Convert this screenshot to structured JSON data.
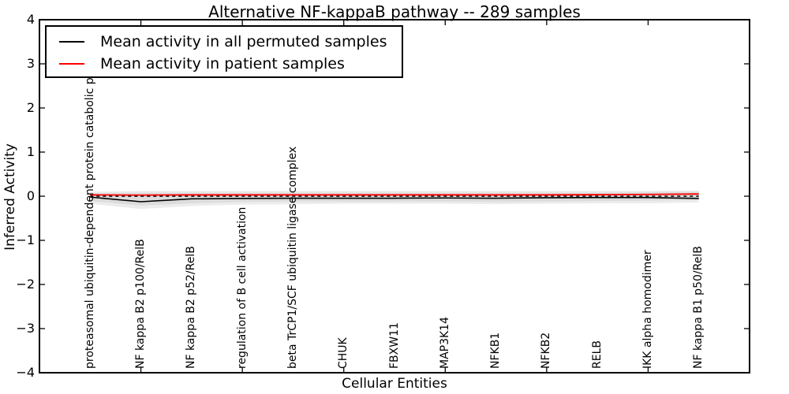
{
  "title": "Alternative NF-kappaB pathway -- 289 samples",
  "axes": {
    "ylabel": "Inferred Activity",
    "xlabel": "Cellular Entities",
    "ytick_labels": [
      "4",
      "3",
      "2",
      "1",
      "0",
      "−1",
      "−2",
      "−3",
      "−4"
    ]
  },
  "legend": {
    "items": [
      {
        "label": "Mean activity in all permuted samples",
        "color": "#000000"
      },
      {
        "label": "Mean activity in patient samples",
        "color": "#ff0000"
      }
    ]
  },
  "chart_data": {
    "type": "line",
    "title": "Alternative NF-kappaB pathway -- 289 samples",
    "xlabel": "Cellular Entities",
    "ylabel": "Inferred Activity",
    "ylim": [
      -4,
      4
    ],
    "yticks": [
      4,
      3,
      2,
      1,
      0,
      -1,
      -2,
      -3,
      -4
    ],
    "grid": false,
    "legend_position": "upper left",
    "categories": [
      "proteasomal ubiquitin-dependent protein catabolic process",
      "NF kappa B2 p100/RelB",
      "NF kappa B2 p52/RelB",
      "regulation of B cell activation",
      "beta TrCP1/SCF ubiquitin ligase complex",
      "CHUK",
      "FBXW11",
      "MAP3K14",
      "NFKB1",
      "NFKB2",
      "RELB",
      "IKK alpha homodimer",
      "NF kappa B1 p50/RelB"
    ],
    "series": [
      {
        "name": "Mean activity in all permuted samples",
        "color": "#000000",
        "values": [
          -0.02,
          -0.125,
          -0.06,
          -0.05,
          -0.045,
          -0.045,
          -0.045,
          -0.04,
          -0.045,
          -0.035,
          -0.03,
          -0.03,
          -0.05
        ]
      },
      {
        "name": "Mean activity in patient samples",
        "color": "#ff0000",
        "values": [
          0.03,
          0.025,
          0.03,
          0.03,
          0.03,
          0.03,
          0.03,
          0.03,
          0.03,
          0.03,
          0.035,
          0.04,
          0.05
        ]
      }
    ],
    "bands": [
      {
        "name": "outer-permutation-band",
        "color": "#ececec",
        "upper": [
          0.1,
          0.12,
          0.12,
          0.12,
          0.12,
          0.12,
          0.12,
          0.12,
          0.12,
          0.12,
          0.12,
          0.12,
          0.13
        ],
        "lower": [
          -0.17,
          -0.29,
          -0.22,
          -0.19,
          -0.18,
          -0.17,
          -0.17,
          -0.17,
          -0.18,
          -0.17,
          -0.16,
          -0.16,
          -0.14
        ]
      },
      {
        "name": "inner-permutation-band",
        "color": "#dcdcdc",
        "upper": [
          0.07,
          0.08,
          0.08,
          0.08,
          0.08,
          0.08,
          0.08,
          0.08,
          0.08,
          0.08,
          0.08,
          0.09,
          0.1
        ],
        "lower": [
          -0.11,
          -0.21,
          -0.16,
          -0.13,
          -0.12,
          -0.12,
          -0.12,
          -0.12,
          -0.13,
          -0.12,
          -0.11,
          -0.1,
          -0.09
        ]
      }
    ],
    "zero_line": {
      "value": 0,
      "style": "dashed",
      "color": "#000000"
    }
  }
}
